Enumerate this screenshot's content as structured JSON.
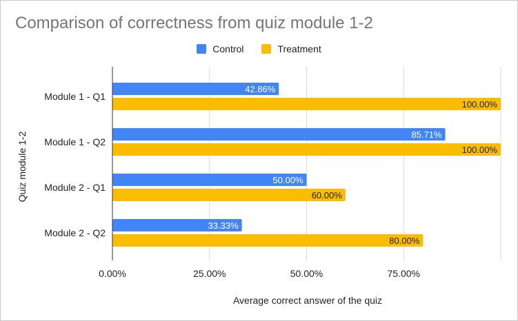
{
  "chart_data": {
    "type": "bar",
    "orientation": "horizontal",
    "title": "Comparison of correctness from quiz module 1-2",
    "xlabel": "Average correct answer of the quiz",
    "ylabel": "Quiz module 1-2",
    "categories": [
      "Module 1 - Q1",
      "Module 1 - Q2",
      "Module 2 - Q1",
      "Module 2 - Q2"
    ],
    "series": [
      {
        "name": "Control",
        "color": "#4285f4",
        "label_color": "#ffffff",
        "values": [
          42.86,
          85.71,
          50.0,
          33.33
        ],
        "labels": [
          "42.86%",
          "85.71%",
          "50.00%",
          "33.33%"
        ]
      },
      {
        "name": "Treatment",
        "color": "#fbbc04",
        "label_color": "#222222",
        "values": [
          100.0,
          100.0,
          60.0,
          80.0
        ],
        "labels": [
          "100.00%",
          "100.00%",
          "60.00%",
          "80.00%"
        ]
      }
    ],
    "xlim": [
      0,
      100
    ],
    "x_ticks": [
      0,
      25,
      50,
      75
    ],
    "x_tick_labels": [
      "0.00%",
      "25.00%",
      "50.00%",
      "75.00%"
    ],
    "grid": true,
    "legend_position": "top-center"
  }
}
